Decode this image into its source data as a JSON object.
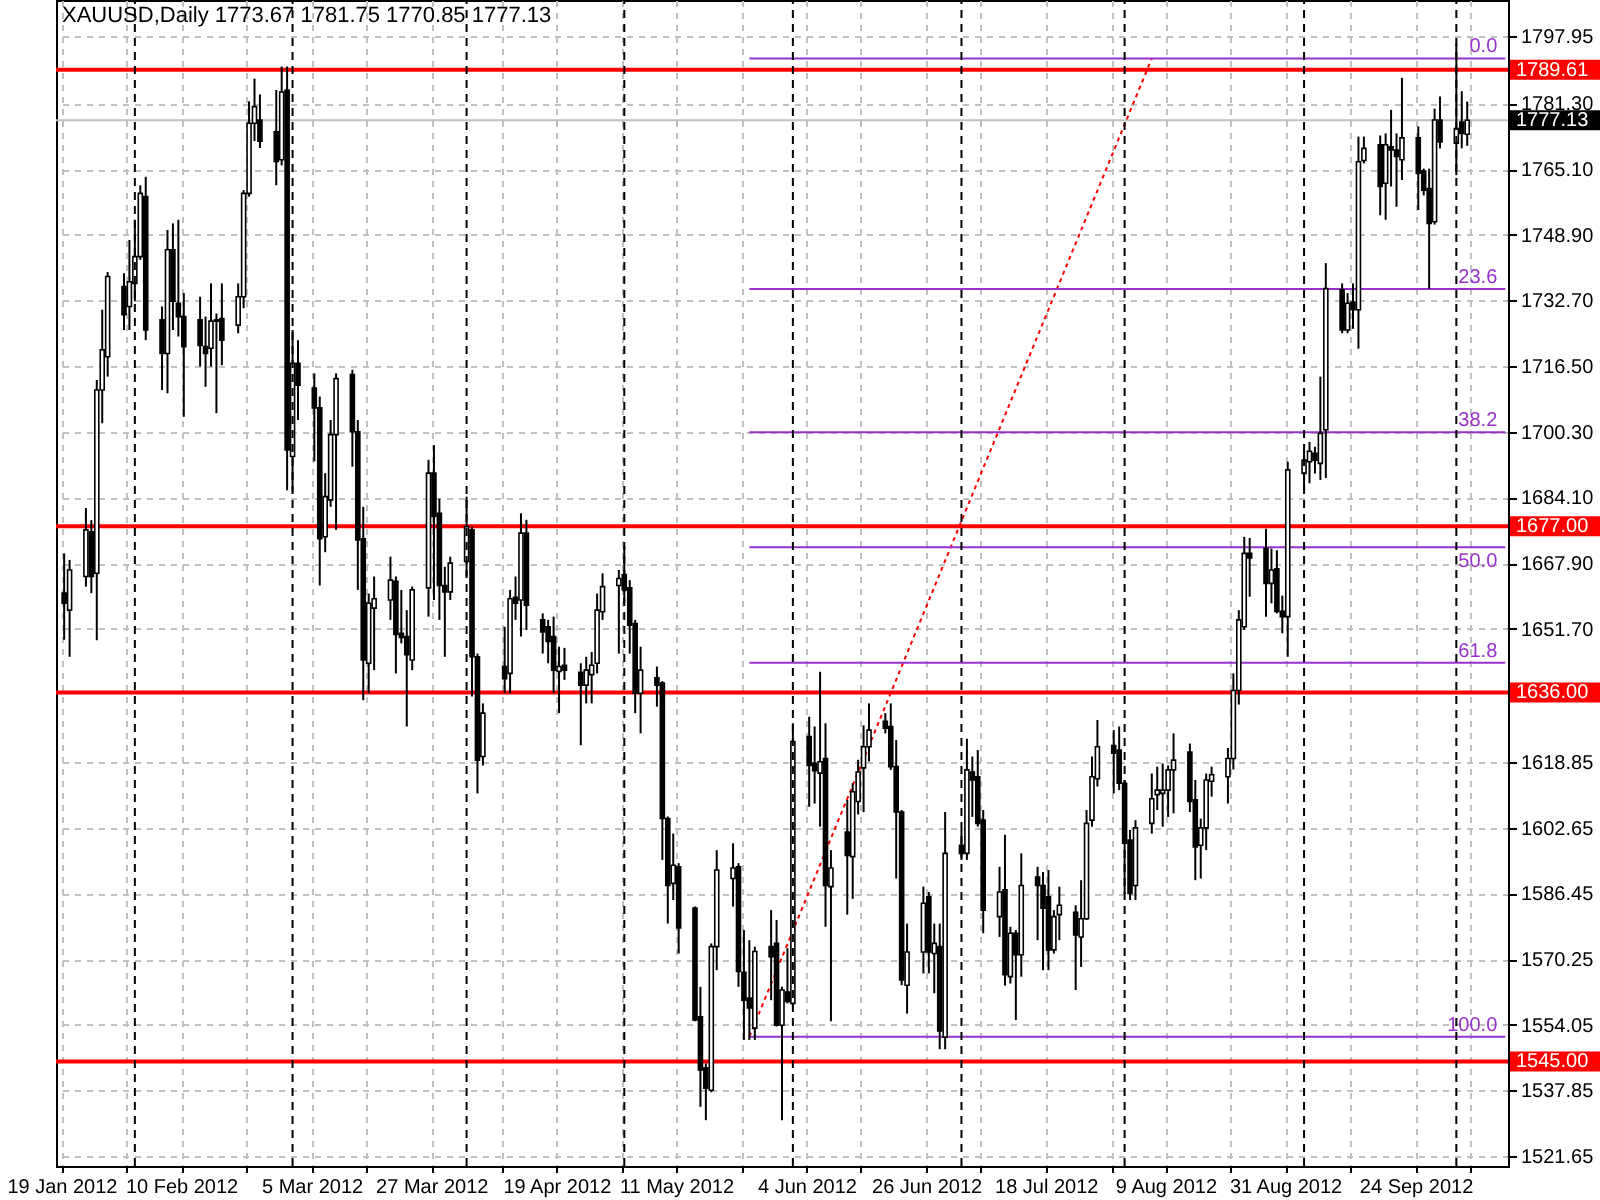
{
  "chart_data": {
    "type": "candlestick",
    "title": "XAUUSD,Daily  1773.67 1781.75 1770.85 1777.13",
    "x": [
      "2012-01-19",
      "2012-01-20",
      "2012-01-23",
      "2012-01-24",
      "2012-01-25",
      "2012-01-26",
      "2012-01-27",
      "2012-01-30",
      "2012-01-31",
      "2012-02-01",
      "2012-02-02",
      "2012-02-03",
      "2012-02-06",
      "2012-02-07",
      "2012-02-08",
      "2012-02-09",
      "2012-02-10",
      "2012-02-13",
      "2012-02-14",
      "2012-02-15",
      "2012-02-16",
      "2012-02-17",
      "2012-02-20",
      "2012-02-21",
      "2012-02-22",
      "2012-02-23",
      "2012-02-24",
      "2012-02-27",
      "2012-02-28",
      "2012-02-29",
      "2012-03-01",
      "2012-03-02",
      "2012-03-05",
      "2012-03-06",
      "2012-03-07",
      "2012-03-08",
      "2012-03-09",
      "2012-03-12",
      "2012-03-13",
      "2012-03-14",
      "2012-03-15",
      "2012-03-16",
      "2012-03-19",
      "2012-03-20",
      "2012-03-21",
      "2012-03-22",
      "2012-03-23",
      "2012-03-26",
      "2012-03-27",
      "2012-03-28",
      "2012-03-29",
      "2012-03-30",
      "2012-04-02",
      "2012-04-03",
      "2012-04-04",
      "2012-04-05",
      "2012-04-09",
      "2012-04-10",
      "2012-04-11",
      "2012-04-12",
      "2012-04-13",
      "2012-04-16",
      "2012-04-17",
      "2012-04-18",
      "2012-04-19",
      "2012-04-20",
      "2012-04-23",
      "2012-04-24",
      "2012-04-25",
      "2012-04-26",
      "2012-04-27",
      "2012-04-30",
      "2012-05-01",
      "2012-05-02",
      "2012-05-03",
      "2012-05-04",
      "2012-05-07",
      "2012-05-08",
      "2012-05-09",
      "2012-05-10",
      "2012-05-11",
      "2012-05-14",
      "2012-05-15",
      "2012-05-16",
      "2012-05-17",
      "2012-05-18",
      "2012-05-21",
      "2012-05-22",
      "2012-05-23",
      "2012-05-24",
      "2012-05-25",
      "2012-05-28",
      "2012-05-29",
      "2012-05-30",
      "2012-05-31",
      "2012-06-01",
      "2012-06-04",
      "2012-06-05",
      "2012-06-06",
      "2012-06-07",
      "2012-06-08",
      "2012-06-11",
      "2012-06-12",
      "2012-06-13",
      "2012-06-14",
      "2012-06-15",
      "2012-06-18",
      "2012-06-19",
      "2012-06-20",
      "2012-06-21",
      "2012-06-22",
      "2012-06-25",
      "2012-06-26",
      "2012-06-27",
      "2012-06-28",
      "2012-06-29",
      "2012-07-02",
      "2012-07-03",
      "2012-07-04",
      "2012-07-05",
      "2012-07-06",
      "2012-07-09",
      "2012-07-10",
      "2012-07-11",
      "2012-07-12",
      "2012-07-13",
      "2012-07-16",
      "2012-07-17",
      "2012-07-18",
      "2012-07-19",
      "2012-07-20",
      "2012-07-23",
      "2012-07-24",
      "2012-07-25",
      "2012-07-26",
      "2012-07-27",
      "2012-07-30",
      "2012-07-31",
      "2012-08-01",
      "2012-08-02",
      "2012-08-03",
      "2012-08-06",
      "2012-08-07",
      "2012-08-08",
      "2012-08-09",
      "2012-08-10",
      "2012-08-13",
      "2012-08-14",
      "2012-08-15",
      "2012-08-16",
      "2012-08-17",
      "2012-08-20",
      "2012-08-21",
      "2012-08-22",
      "2012-08-23",
      "2012-08-24",
      "2012-08-27",
      "2012-08-28",
      "2012-08-29",
      "2012-08-30",
      "2012-08-31",
      "2012-09-03",
      "2012-09-04",
      "2012-09-05",
      "2012-09-06",
      "2012-09-07",
      "2012-09-10",
      "2012-09-11",
      "2012-09-12",
      "2012-09-13",
      "2012-09-14",
      "2012-09-17",
      "2012-09-18",
      "2012-09-19",
      "2012-09-20",
      "2012-09-21",
      "2012-09-24",
      "2012-09-25",
      "2012-09-26",
      "2012-09-27",
      "2012-09-28",
      "2012-10-01",
      "2012-10-02",
      "2012-10-03"
    ],
    "ohlc": [
      [
        1660.5,
        1670.3,
        1649.0,
        1658.0
      ],
      [
        1656.3,
        1668.7,
        1644.8,
        1666.2
      ],
      [
        1664.6,
        1681.5,
        1662.1,
        1676.1
      ],
      [
        1675.6,
        1678.5,
        1660.5,
        1664.6
      ],
      [
        1665.4,
        1713.1,
        1648.9,
        1710.6
      ],
      [
        1710.6,
        1730.4,
        1702.4,
        1720.5
      ],
      [
        1718.8,
        1739.7,
        1713.9,
        1738.6
      ],
      [
        1736.1,
        1739.4,
        1725.4,
        1729.2
      ],
      [
        1731.2,
        1747.6,
        1725.4,
        1737.3
      ],
      [
        1736.9,
        1752.6,
        1732.5,
        1743.5
      ],
      [
        1743.5,
        1761.1,
        1742.7,
        1759.1
      ],
      [
        1758.3,
        1763.2,
        1722.9,
        1725.4
      ],
      [
        1727.9,
        1731.2,
        1710.6,
        1719.6
      ],
      [
        1719.6,
        1750.1,
        1709.8,
        1745.2
      ],
      [
        1745.2,
        1751.7,
        1725.4,
        1732.5
      ],
      [
        1732.0,
        1752.6,
        1723.8,
        1728.7
      ],
      [
        1728.7,
        1734.5,
        1704.0,
        1721.3
      ],
      [
        1727.9,
        1733.6,
        1716.4,
        1721.6
      ],
      [
        1721.3,
        1728.7,
        1711.4,
        1719.6
      ],
      [
        1720.9,
        1736.9,
        1716.4,
        1727.6
      ],
      [
        1727.6,
        1729.5,
        1704.9,
        1727.9
      ],
      [
        1728.2,
        1736.9,
        1716.7,
        1722.9
      ],
      [
        1726.6,
        1736.9,
        1724.6,
        1733.6
      ],
      [
        1733.6,
        1759.9,
        1730.8,
        1759.1
      ],
      [
        1759.1,
        1781.8,
        1758.3,
        1776.4
      ],
      [
        1776.4,
        1787.4,
        1772.0,
        1780.5
      ],
      [
        1777.2,
        1783.5,
        1770.3,
        1772.0
      ],
      [
        1774.3,
        1784.6,
        1761.1,
        1767.0
      ],
      [
        1767.4,
        1790.4,
        1766.0,
        1784.1
      ],
      [
        1784.6,
        1790.4,
        1685.9,
        1695.8
      ],
      [
        1694.2,
        1725.4,
        1685.4,
        1717.2
      ],
      [
        1717.2,
        1722.9,
        1703.2,
        1711.8
      ],
      [
        1711.1,
        1714.7,
        1693.0,
        1706.2
      ],
      [
        1706.2,
        1709.0,
        1662.4,
        1673.9
      ],
      [
        1674.4,
        1690.1,
        1670.6,
        1684.3
      ],
      [
        1683.5,
        1703.2,
        1681.8,
        1699.6
      ],
      [
        1699.6,
        1714.7,
        1676.1,
        1713.4
      ],
      [
        1714.4,
        1715.6,
        1691.7,
        1700.3
      ],
      [
        1700.3,
        1703.2,
        1661.3,
        1673.6
      ],
      [
        1673.9,
        1681.8,
        1634.1,
        1644.0
      ],
      [
        1643.2,
        1660.4,
        1635.8,
        1658.0
      ],
      [
        1656.8,
        1664.6,
        1641.5,
        1659.1
      ],
      [
        1658.8,
        1669.5,
        1653.9,
        1663.7
      ],
      [
        1663.4,
        1664.6,
        1640.7,
        1650.3
      ],
      [
        1650.6,
        1661.3,
        1648.1,
        1649.6
      ],
      [
        1649.8,
        1656.3,
        1627.6,
        1645.3
      ],
      [
        1644.0,
        1662.1,
        1641.5,
        1661.3
      ],
      [
        1661.8,
        1693.4,
        1654.7,
        1690.1
      ],
      [
        1690.1,
        1697.0,
        1658.8,
        1679.4
      ],
      [
        1680.2,
        1683.8,
        1653.9,
        1662.4
      ],
      [
        1662.4,
        1667.0,
        1644.8,
        1660.8
      ],
      [
        1660.8,
        1669.5,
        1658.8,
        1667.9
      ],
      [
        1668.3,
        1684.3,
        1664.6,
        1676.9
      ],
      [
        1676.1,
        1676.9,
        1635.0,
        1644.8
      ],
      [
        1644.8,
        1645.6,
        1611.1,
        1619.3
      ],
      [
        1620.2,
        1633.3,
        1618.0,
        1630.9
      ],
      [
        1642.4,
        1652.2,
        1635.8,
        1639.4
      ],
      [
        1640.7,
        1661.3,
        1635.8,
        1659.1
      ],
      [
        1659.5,
        1664.6,
        1653.9,
        1658.0
      ],
      [
        1658.8,
        1680.2,
        1649.8,
        1675.3
      ],
      [
        1675.3,
        1678.6,
        1651.4,
        1657.5
      ],
      [
        1653.9,
        1655.5,
        1645.6,
        1650.9
      ],
      [
        1652.2,
        1653.9,
        1643.2,
        1648.6
      ],
      [
        1649.8,
        1654.7,
        1635.8,
        1641.5
      ],
      [
        1641.2,
        1647.3,
        1630.9,
        1642.4
      ],
      [
        1642.7,
        1647.0,
        1639.1,
        1641.5
      ],
      [
        1641.0,
        1643.2,
        1623.0,
        1637.8
      ],
      [
        1637.8,
        1644.8,
        1633.3,
        1641.5
      ],
      [
        1640.4,
        1646.0,
        1633.3,
        1642.7
      ],
      [
        1643.2,
        1660.4,
        1640.7,
        1656.3
      ],
      [
        1655.9,
        1665.4,
        1653.9,
        1662.1
      ],
      [
        1662.4,
        1666.2,
        1645.6,
        1664.1
      ],
      [
        1665.1,
        1672.0,
        1658.0,
        1661.3
      ],
      [
        1661.8,
        1663.7,
        1645.6,
        1652.6
      ],
      [
        1653.0,
        1653.9,
        1630.9,
        1635.8
      ],
      [
        1635.8,
        1647.3,
        1625.9,
        1641.5
      ],
      [
        1639.6,
        1642.4,
        1632.5,
        1637.8
      ],
      [
        1638.3,
        1638.8,
        1594.7,
        1604.9
      ],
      [
        1604.9,
        1605.4,
        1579.0,
        1588.4
      ],
      [
        1588.9,
        1601.2,
        1584.8,
        1593.4
      ],
      [
        1593.0,
        1593.9,
        1571.6,
        1577.9
      ],
      [
        1582.8,
        1583.2,
        1554.9,
        1555.2
      ],
      [
        1556.0,
        1563.4,
        1533.8,
        1542.9
      ],
      [
        1543.4,
        1544.5,
        1530.5,
        1538.4
      ],
      [
        1537.9,
        1574.1,
        1537.4,
        1573.3
      ],
      [
        1573.3,
        1597.1,
        1567.5,
        1592.2
      ],
      [
        1590.1,
        1598.8,
        1583.2,
        1592.7
      ],
      [
        1593.0,
        1593.9,
        1563.4,
        1567.2
      ],
      [
        1567.0,
        1577.4,
        1550.3,
        1560.1
      ],
      [
        1560.6,
        1574.9,
        1550.3,
        1558.2
      ],
      [
        1553.2,
        1573.3,
        1550.3,
        1572.1
      ],
      [
        1573.3,
        1582.3,
        1560.1,
        1570.8
      ],
      [
        1574.1,
        1579.9,
        1553.6,
        1553.9
      ],
      [
        1553.9,
        1563.4,
        1530.5,
        1562.6
      ],
      [
        1562.1,
        1572.9,
        1559.3,
        1559.8
      ],
      [
        1559.3,
        1628.4,
        1558.8,
        1623.9
      ],
      [
        1625.1,
        1630.0,
        1607.8,
        1618.0
      ],
      [
        1618.5,
        1627.6,
        1608.6,
        1616.7
      ],
      [
        1616.1,
        1641.1,
        1602.9,
        1618.9
      ],
      [
        1619.7,
        1628.4,
        1578.2,
        1588.4
      ],
      [
        1588.1,
        1597.1,
        1554.9,
        1592.7
      ],
      [
        1601.6,
        1609.5,
        1581.2,
        1595.8
      ],
      [
        1595.5,
        1613.6,
        1585.1,
        1611.5
      ],
      [
        1609.1,
        1619.4,
        1605.9,
        1616.4
      ],
      [
        1617.4,
        1627.9,
        1606.5,
        1622.6
      ],
      [
        1622.6,
        1633.3,
        1619.0,
        1626.7
      ],
      [
        1628.9,
        1630.9,
        1625.9,
        1627.2
      ],
      [
        1627.6,
        1633.3,
        1616.9,
        1617.7
      ],
      [
        1617.7,
        1624.3,
        1590.1,
        1606.5
      ],
      [
        1606.5,
        1607.0,
        1563.8,
        1565.1
      ],
      [
        1563.8,
        1579.0,
        1556.8,
        1572.0
      ],
      [
        1572.0,
        1588.1,
        1566.7,
        1584.0
      ],
      [
        1585.6,
        1586.8,
        1566.7,
        1572.0
      ],
      [
        1571.6,
        1579.0,
        1561.8,
        1574.1
      ],
      [
        1573.3,
        1579.0,
        1548.0,
        1552.5
      ],
      [
        1551.0,
        1606.5,
        1548.0,
        1596.3
      ],
      [
        1598.3,
        1602.1,
        1594.7,
        1596.3
      ],
      [
        1596.3,
        1624.6,
        1594.7,
        1616.9
      ],
      [
        1616.4,
        1620.2,
        1605.3,
        1614.4
      ],
      [
        1615.2,
        1621.8,
        1602.9,
        1603.7
      ],
      [
        1604.5,
        1607.0,
        1576.6,
        1582.3
      ],
      [
        1580.7,
        1593.0,
        1575.7,
        1586.8
      ],
      [
        1587.3,
        1600.9,
        1563.7,
        1566.4
      ],
      [
        1565.9,
        1578.2,
        1564.2,
        1576.6
      ],
      [
        1576.6,
        1577.4,
        1555.2,
        1571.3
      ],
      [
        1571.3,
        1596.3,
        1565.9,
        1588.4
      ],
      [
        1590.5,
        1593.0,
        1574.9,
        1588.4
      ],
      [
        1588.4,
        1591.7,
        1567.5,
        1582.8
      ],
      [
        1585.6,
        1592.2,
        1567.5,
        1572.5
      ],
      [
        1572.5,
        1582.3,
        1571.6,
        1580.7
      ],
      [
        1581.2,
        1588.1,
        1574.9,
        1583.5
      ],
      [
        1581.8,
        1583.5,
        1562.6,
        1576.2
      ],
      [
        1575.7,
        1589.7,
        1568.3,
        1580.2
      ],
      [
        1580.2,
        1607.0,
        1579.9,
        1603.7
      ],
      [
        1604.5,
        1620.2,
        1602.9,
        1615.2
      ],
      [
        1614.7,
        1629.2,
        1612.8,
        1622.6
      ],
      [
        1622.9,
        1626.7,
        1611.1,
        1621.0
      ],
      [
        1621.8,
        1627.6,
        1611.9,
        1613.6
      ],
      [
        1613.6,
        1614.4,
        1586.4,
        1598.8
      ],
      [
        1599.6,
        1602.1,
        1584.8,
        1586.4
      ],
      [
        1588.4,
        1604.5,
        1584.8,
        1602.6
      ],
      [
        1603.7,
        1616.0,
        1601.2,
        1609.8
      ],
      [
        1610.8,
        1617.7,
        1607.0,
        1611.9
      ],
      [
        1611.1,
        1618.5,
        1602.9,
        1611.9
      ],
      [
        1611.9,
        1618.0,
        1605.3,
        1616.9
      ],
      [
        1616.9,
        1625.9,
        1606.2,
        1619.3
      ],
      [
        1621.3,
        1623.4,
        1606.5,
        1609.1
      ],
      [
        1609.5,
        1614.4,
        1589.7,
        1597.9
      ],
      [
        1598.3,
        1604.9,
        1590.1,
        1602.6
      ],
      [
        1602.6,
        1616.0,
        1597.1,
        1614.4
      ],
      [
        1614.1,
        1617.7,
        1610.3,
        1615.7
      ],
      [
        1615.2,
        1622.3,
        1608.6,
        1619.7
      ],
      [
        1619.7,
        1640.7,
        1617.0,
        1636.5
      ],
      [
        1636.5,
        1656.3,
        1633.0,
        1653.9
      ],
      [
        1652.2,
        1674.4,
        1651.4,
        1670.3
      ],
      [
        1670.3,
        1674.1,
        1659.6,
        1669.2
      ],
      [
        1671.5,
        1676.4,
        1654.7,
        1662.9
      ],
      [
        1662.9,
        1671.5,
        1658.0,
        1666.2
      ],
      [
        1666.5,
        1671.1,
        1655.5,
        1656.0
      ],
      [
        1656.0,
        1659.9,
        1650.6,
        1654.7
      ],
      [
        1654.7,
        1692.9,
        1644.8,
        1690.9
      ],
      [
        1690.0,
        1696.1,
        1685.9,
        1693.3
      ],
      [
        1692.9,
        1697.8,
        1687.6,
        1695.5
      ],
      [
        1695.0,
        1696.6,
        1690.0,
        1693.3
      ],
      [
        1692.5,
        1713.9,
        1688.4,
        1699.9
      ],
      [
        1700.8,
        1741.9,
        1688.9,
        1735.6
      ],
      [
        1735.3,
        1736.9,
        1724.6,
        1725.4
      ],
      [
        1725.4,
        1734.5,
        1724.6,
        1732.0
      ],
      [
        1732.3,
        1736.9,
        1725.7,
        1730.4
      ],
      [
        1730.4,
        1773.1,
        1720.8,
        1766.9
      ],
      [
        1767.2,
        1773.1,
        1766.5,
        1770.2
      ],
      [
        1771.1,
        1773.4,
        1753.7,
        1760.8
      ],
      [
        1761.6,
        1773.9,
        1752.6,
        1771.1
      ],
      [
        1770.6,
        1779.7,
        1760.8,
        1769.8
      ],
      [
        1769.8,
        1773.9,
        1755.8,
        1768.2
      ],
      [
        1767.4,
        1787.6,
        1762.4,
        1772.8
      ],
      [
        1772.8,
        1775.6,
        1755.0,
        1764.1
      ],
      [
        1764.6,
        1765.2,
        1758.6,
        1759.9
      ],
      [
        1760.3,
        1765.2,
        1735.6,
        1751.7
      ],
      [
        1752.1,
        1780.0,
        1751.4,
        1777.2
      ],
      [
        1777.2,
        1783.0,
        1770.2,
        1771.8
      ],
      [
        1771.5,
        1796.1,
        1763.6,
        1775.1
      ],
      [
        1776.7,
        1784.3,
        1770.2,
        1773.9
      ],
      [
        1773.67,
        1781.75,
        1770.85,
        1777.13
      ]
    ],
    "series": [
      {
        "type": "line",
        "color": "#ff0000",
        "line_style": "dotted",
        "x": [
          "2012-05-24",
          "2012-08-06"
        ],
        "values": [
          1551.1,
          1792.4
        ]
      },
      {
        "type": "line",
        "name": "0.0",
        "color": "#9932cc",
        "x": [
          "2012-05-24",
          "2012-10-10"
        ],
        "values": [
          1792.4,
          1792.4
        ]
      },
      {
        "type": "line",
        "name": "23.6",
        "color": "#9932cc",
        "x": [
          "2012-05-24",
          "2012-10-10"
        ],
        "values": [
          1735.5,
          1735.5
        ]
      },
      {
        "type": "line",
        "name": "38.2",
        "color": "#9932cc",
        "x": [
          "2012-05-24",
          "2012-10-10"
        ],
        "values": [
          1700.2,
          1700.2
        ]
      },
      {
        "type": "line",
        "name": "50.0",
        "color": "#9932cc",
        "x": [
          "2012-05-24",
          "2012-10-10"
        ],
        "values": [
          1671.8,
          1671.8
        ]
      },
      {
        "type": "line",
        "name": "61.8",
        "color": "#9932cc",
        "x": [
          "2012-05-24",
          "2012-10-10"
        ],
        "values": [
          1643.3,
          1643.3
        ]
      },
      {
        "type": "line",
        "name": "100.0",
        "color": "#9932cc",
        "x": [
          "2012-05-24",
          "2012-10-10"
        ],
        "values": [
          1551.1,
          1551.1
        ]
      }
    ],
    "xlim": [
      "2012-01-18",
      "2012-10-11"
    ],
    "ylim": [
      1519.2,
      1806.8
    ],
    "xticks": [
      {
        "value": "2012-01-19",
        "label": "19 Jan 2012"
      },
      {
        "value": "2012-01-31",
        "label": null
      },
      {
        "value": "2012-02-10",
        "label": "10 Feb 2012"
      },
      {
        "value": "2012-02-22",
        "label": null
      },
      {
        "value": "2012-03-05",
        "label": "5 Mar 2012"
      },
      {
        "value": "2012-03-15",
        "label": null
      },
      {
        "value": "2012-03-27",
        "label": "27 Mar 2012"
      },
      {
        "value": "2012-04-09",
        "label": null
      },
      {
        "value": "2012-04-19",
        "label": "19 Apr 2012"
      },
      {
        "value": "2012-05-01",
        "label": null
      },
      {
        "value": "2012-05-11",
        "label": "11 May 2012"
      },
      {
        "value": "2012-05-23",
        "label": null
      },
      {
        "value": "2012-06-04",
        "label": "4 Jun 2012"
      },
      {
        "value": "2012-06-14",
        "label": null
      },
      {
        "value": "2012-06-26",
        "label": "26 Jun 2012"
      },
      {
        "value": "2012-07-06",
        "label": null
      },
      {
        "value": "2012-07-18",
        "label": "18 Jul 2012"
      },
      {
        "value": "2012-07-30",
        "label": null
      },
      {
        "value": "2012-08-09",
        "label": "9 Aug 2012"
      },
      {
        "value": "2012-08-21",
        "label": null
      },
      {
        "value": "2012-08-31",
        "label": "31 Aug 2012"
      },
      {
        "value": "2012-09-12",
        "label": null
      },
      {
        "value": "2012-09-24",
        "label": "24 Sep 2012"
      },
      {
        "value": "2012-10-04",
        "label": null
      }
    ],
    "yticks": [
      1797.95,
      {
        "value": 1781.3,
        "label": "1781.30"
      },
      {
        "value": 1765.1,
        "label": "1765.10"
      },
      {
        "value": 1748.9,
        "label": "1748.90"
      },
      {
        "value": 1732.7,
        "label": "1732.70"
      },
      {
        "value": 1716.5,
        "label": "1716.50"
      },
      {
        "value": 1700.3,
        "label": "1700.30"
      },
      {
        "value": 1684.1,
        "label": "1684.10"
      },
      {
        "value": 1667.9,
        "label": "1667.90"
      },
      {
        "value": 1651.7,
        "label": "1651.70"
      },
      1618.85,
      1602.65,
      1586.45,
      1570.25,
      1554.05,
      1537.85,
      1521.65
    ],
    "grid": true,
    "ref_lines": [
      {
        "axis": "y",
        "value": 1789.61,
        "label": "1789.61",
        "color": "#ff0000"
      },
      {
        "axis": "y",
        "value": 1677.0,
        "label": "1677.00",
        "color": "#ff0000"
      },
      {
        "axis": "y",
        "value": 1636.0,
        "label": "1636.00",
        "color": "#ff0000"
      },
      {
        "axis": "y",
        "value": 1545.0,
        "label": "1545.00",
        "color": "#ff0000"
      },
      {
        "axis": "y",
        "value": 1777.13,
        "label": "1777.13",
        "color": "#c0c0c0"
      },
      {
        "axis": "x",
        "value": "2012-02-01",
        "color": "#000000",
        "line_style": "dashed"
      },
      {
        "axis": "x",
        "value": "2012-03-01",
        "color": "#000000",
        "line_style": "dashed"
      },
      {
        "axis": "x",
        "value": "2012-04-02",
        "color": "#000000",
        "line_style": "dashed"
      },
      {
        "axis": "x",
        "value": "2012-05-01",
        "color": "#000000",
        "line_style": "dashed"
      },
      {
        "axis": "x",
        "value": "2012-06-01",
        "color": "#000000",
        "line_style": "dashed"
      },
      {
        "axis": "x",
        "value": "2012-07-02",
        "color": "#000000",
        "line_style": "dashed"
      },
      {
        "axis": "x",
        "value": "2012-08-01",
        "color": "#000000",
        "line_style": "dashed"
      },
      {
        "axis": "x",
        "value": "2012-09-03",
        "color": "#000000",
        "line_style": "dashed"
      },
      {
        "axis": "x",
        "value": "2012-10-01",
        "color": "#000000",
        "line_style": "dashed"
      }
    ]
  }
}
